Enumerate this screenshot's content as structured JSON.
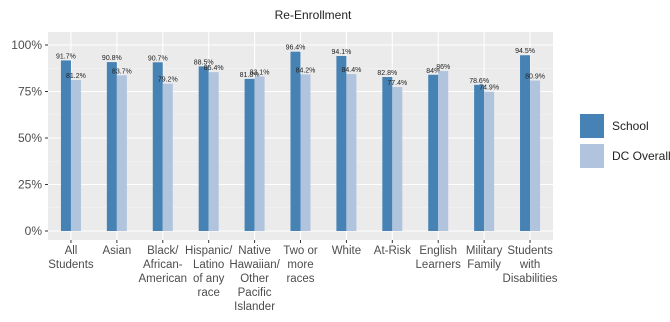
{
  "chart_data": {
    "type": "bar",
    "title": "Re-Enrollment",
    "xlabel": "",
    "ylabel": "",
    "ylim": [
      0,
      1.05
    ],
    "y_ticks": [
      "0%",
      "25%",
      "50%",
      "75%",
      "100%"
    ],
    "y_tick_values": [
      0,
      0.25,
      0.5,
      0.75,
      1.0
    ],
    "grid": true,
    "legend_position": "right",
    "categories": [
      [
        "All",
        "Students"
      ],
      [
        "Asian"
      ],
      [
        "Black/",
        "African-",
        "American"
      ],
      [
        "Hispanic/",
        "Latino",
        "of any",
        "race"
      ],
      [
        "Native",
        "Hawaiian/",
        "Other",
        "Pacific",
        "Islander"
      ],
      [
        "Two or",
        "more",
        "races"
      ],
      [
        "White"
      ],
      [
        "At-Risk"
      ],
      [
        "English",
        "Learners"
      ],
      [
        "Military",
        "Family"
      ],
      [
        "Students",
        "with",
        "Disabilities"
      ]
    ],
    "series": [
      {
        "name": "School",
        "color": "#4682b4",
        "values": [
          0.917,
          0.908,
          0.907,
          0.885,
          0.818,
          0.964,
          0.941,
          0.828,
          0.84,
          0.786,
          0.945
        ],
        "labels": [
          "91.7%",
          "90.8%",
          "90.7%",
          "88.5%",
          "81.8%",
          "96.4%",
          "94.1%",
          "82.8%",
          "84%",
          "78.6%",
          "94.5%"
        ]
      },
      {
        "name": "DC Overall",
        "color": "#b0c4de",
        "values": [
          0.812,
          0.837,
          0.792,
          0.854,
          0.831,
          0.842,
          0.844,
          0.774,
          0.86,
          0.749,
          0.809
        ],
        "labels": [
          "81.2%",
          "83.7%",
          "79.2%",
          "85.4%",
          "83.1%",
          "84.2%",
          "84.4%",
          "77.4%",
          "86%",
          "74.9%",
          "80.9%"
        ]
      }
    ]
  }
}
